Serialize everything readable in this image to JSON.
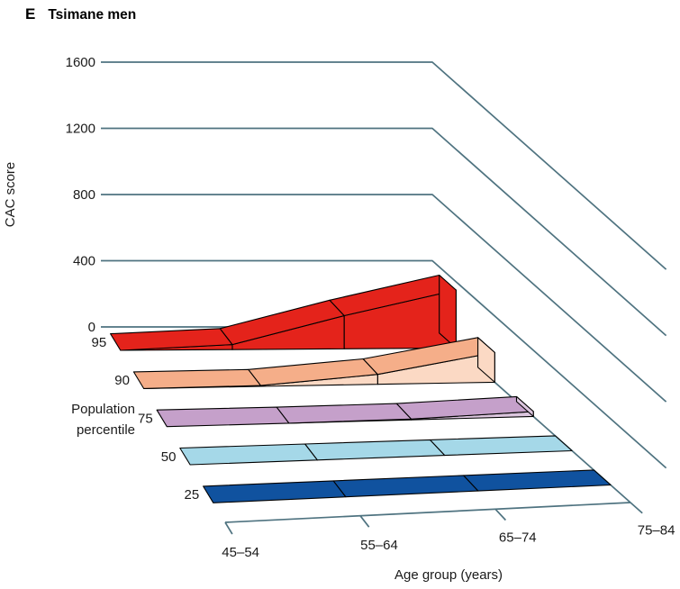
{
  "panel": {
    "letter": "E",
    "title": "Tsimane men"
  },
  "axes": {
    "y": {
      "label": "CAC score",
      "ticks": [
        0,
        400,
        800,
        1200,
        1600
      ]
    },
    "x": {
      "label": "Age group (years)",
      "categories": [
        "45–54",
        "55–64",
        "65–74",
        "75–84"
      ]
    },
    "z": {
      "label_lines": [
        "Population",
        "percentile"
      ],
      "percentiles": [
        "95",
        "90",
        "75",
        "50",
        "25"
      ]
    }
  },
  "chart_data": {
    "type": "area",
    "variant": "3d-ribbon",
    "title": "Tsimane men",
    "xlabel": "Age group (years)",
    "ylabel": "CAC score",
    "zlabel": "Population percentile",
    "ylim": [
      0,
      1600
    ],
    "x_categories": [
      "45–54",
      "55–64",
      "65–74",
      "75–84"
    ],
    "depth_percentiles": [
      95,
      90,
      75,
      50,
      25
    ],
    "series": [
      {
        "percentile": 95,
        "values": [
          0,
          30,
          200,
          350
        ],
        "top_color": "#e4231b",
        "side_color": "#e4231b"
      },
      {
        "percentile": 90,
        "values": [
          0,
          5,
          60,
          180
        ],
        "top_color": "#f5ae89",
        "side_color": "#fbd9c4"
      },
      {
        "percentile": 75,
        "values": [
          0,
          0,
          5,
          30
        ],
        "top_color": "#c5a0ca",
        "side_color": "#dcc6de"
      },
      {
        "percentile": 50,
        "values": [
          0,
          0,
          0,
          0
        ],
        "top_color": "#a5d8e8",
        "side_color": "#cdeaf3"
      },
      {
        "percentile": 25,
        "values": [
          0,
          0,
          0,
          0
        ],
        "top_color": "#10529f",
        "side_color": "#10529f"
      }
    ]
  },
  "style": {
    "grid_color": "#4f7380",
    "outline_color": "#000000",
    "text_color": "#1a1a1a",
    "background": "#ffffff"
  }
}
